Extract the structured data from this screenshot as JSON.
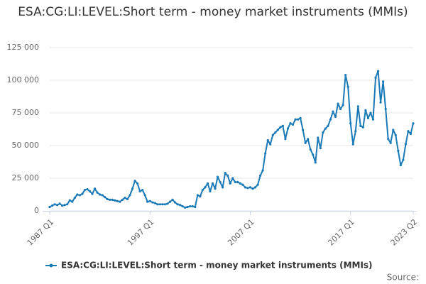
{
  "chart_data": {
    "type": "line",
    "title": "ESA:CG:LI:LEVEL:Short term - money market instruments (MMIs)",
    "source": "Source:",
    "categories": [
      "1987 Q1",
      null,
      null,
      null,
      null,
      null,
      null,
      null,
      null,
      null,
      null,
      null,
      null,
      null,
      null,
      null,
      null,
      null,
      null,
      null,
      null,
      null,
      null,
      null,
      null,
      null,
      null,
      null,
      null,
      null,
      null,
      null,
      null,
      null,
      null,
      null,
      null,
      null,
      null,
      null,
      "1997 Q1",
      null,
      null,
      null,
      null,
      null,
      null,
      null,
      null,
      null,
      null,
      null,
      null,
      null,
      null,
      null,
      null,
      null,
      null,
      null,
      null,
      null,
      null,
      null,
      null,
      null,
      null,
      null,
      null,
      null,
      null,
      null,
      null,
      null,
      null,
      null,
      null,
      null,
      null,
      null,
      "2007 Q1",
      null,
      null,
      null,
      null,
      null,
      null,
      null,
      null,
      null,
      null,
      null,
      null,
      null,
      null,
      null,
      null,
      null,
      null,
      null,
      null,
      null,
      null,
      null,
      null,
      null,
      null,
      null,
      null,
      null,
      null,
      null,
      null,
      null,
      null,
      null,
      null,
      null,
      null,
      null,
      "2017 Q1",
      null,
      null,
      null,
      null,
      null,
      null,
      null,
      null,
      null,
      null,
      null,
      null,
      null,
      null,
      null,
      null,
      null,
      null,
      null,
      null,
      null,
      null,
      null,
      null,
      "2023 Q2"
    ],
    "series": [
      {
        "name": "ESA:CG:LI:LEVEL:Short term - money market instruments (MMIs)",
        "color": "#1a7ab8",
        "values": [
          3000,
          4000,
          5000,
          4500,
          5500,
          4000,
          4500,
          5000,
          8000,
          7000,
          10000,
          12500,
          12000,
          13000,
          16000,
          16500,
          15000,
          13000,
          17000,
          14000,
          12500,
          12000,
          10500,
          9000,
          8500,
          8500,
          8000,
          7500,
          7000,
          8500,
          10000,
          9000,
          12000,
          17000,
          23000,
          21000,
          15000,
          16000,
          12000,
          7000,
          7500,
          6500,
          6000,
          5000,
          5000,
          5000,
          5000,
          5500,
          7000,
          8500,
          6500,
          5000,
          4500,
          3500,
          2500,
          3000,
          3500,
          3500,
          3000,
          12000,
          11000,
          16000,
          18000,
          21000,
          15000,
          21000,
          17000,
          26000,
          22000,
          18000,
          29000,
          27000,
          21000,
          25000,
          22000,
          22000,
          21000,
          20000,
          18000,
          17500,
          18000,
          17000,
          18000,
          20000,
          27000,
          31000,
          44000,
          54000,
          51000,
          58000,
          60000,
          62000,
          64000,
          65000,
          55000,
          63000,
          67000,
          66000,
          70000,
          70000,
          71000,
          62000,
          52000,
          55000,
          47000,
          43000,
          37000,
          56000,
          48000,
          60000,
          63000,
          65000,
          70000,
          76000,
          72000,
          82000,
          78000,
          81000,
          104000,
          95000,
          67000,
          51000,
          61000,
          80000,
          65000,
          64000,
          77000,
          71000,
          75000,
          70000,
          102000,
          107000,
          83000,
          99000,
          78000,
          55000,
          52000,
          62000,
          58000,
          46000,
          35000,
          39000,
          51000,
          61000,
          59000,
          67000
        ]
      }
    ],
    "ylim": [
      0,
      125000
    ],
    "yticks": [
      0,
      {
        "value": 25000,
        "label": "25 000"
      },
      {
        "value": 50000,
        "label": "50 000"
      },
      {
        "value": 75000,
        "label": "75 000"
      },
      {
        "value": 100000,
        "label": "100 000"
      },
      {
        "value": 125000,
        "label": "125 000"
      }
    ],
    "grid": true,
    "legend": "bottom"
  }
}
